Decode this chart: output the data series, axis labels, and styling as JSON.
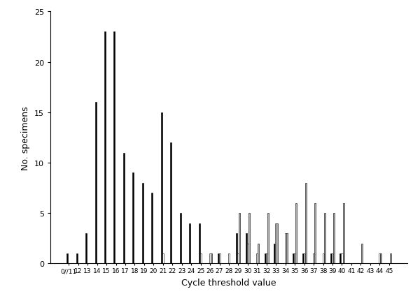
{
  "x_labels": [
    "0//11",
    "12",
    "13",
    "14",
    "15",
    "16",
    "17",
    "18",
    "19",
    "20",
    "21",
    "22",
    "23",
    "24",
    "25",
    "26",
    "27",
    "28",
    "29",
    "30",
    "31",
    "32",
    "33",
    "34",
    "35",
    "36",
    "37",
    "38",
    "39",
    "40",
    "41",
    "42",
    "43",
    "44",
    "45"
  ],
  "black_bars": [
    1,
    1,
    3,
    16,
    23,
    23,
    11,
    9,
    8,
    7,
    15,
    12,
    5,
    4,
    4,
    0,
    1,
    0,
    3,
    3,
    0,
    1,
    2,
    0,
    1,
    1,
    0,
    0,
    1,
    1,
    0,
    0,
    0,
    0,
    0
  ],
  "white_bars": [
    0,
    0,
    0,
    0,
    0,
    0,
    0,
    0,
    0,
    0,
    1,
    0,
    0,
    0,
    1,
    1,
    1,
    1,
    1,
    2,
    1,
    1,
    4,
    3,
    1,
    1,
    1,
    1,
    1,
    1,
    0,
    0,
    0,
    1,
    0
  ],
  "gray_bars": [
    0,
    0,
    0,
    0,
    0,
    0,
    0,
    0,
    0,
    0,
    0,
    0,
    0,
    0,
    0,
    1,
    0,
    0,
    5,
    5,
    2,
    5,
    4,
    3,
    6,
    8,
    6,
    5,
    5,
    6,
    0,
    2,
    0,
    1,
    1
  ],
  "ylabel": "No. specimens",
  "xlabel": "Cycle threshold value",
  "ylim": [
    0,
    25
  ],
  "yticks": [
    0,
    5,
    10,
    15,
    20,
    25
  ],
  "bar_width": 0.15,
  "black_color": "#000000",
  "white_color": "#ffffff",
  "gray_color": "#b0b0b0",
  "edge_color": "#000000",
  "edge_width": 0.4
}
